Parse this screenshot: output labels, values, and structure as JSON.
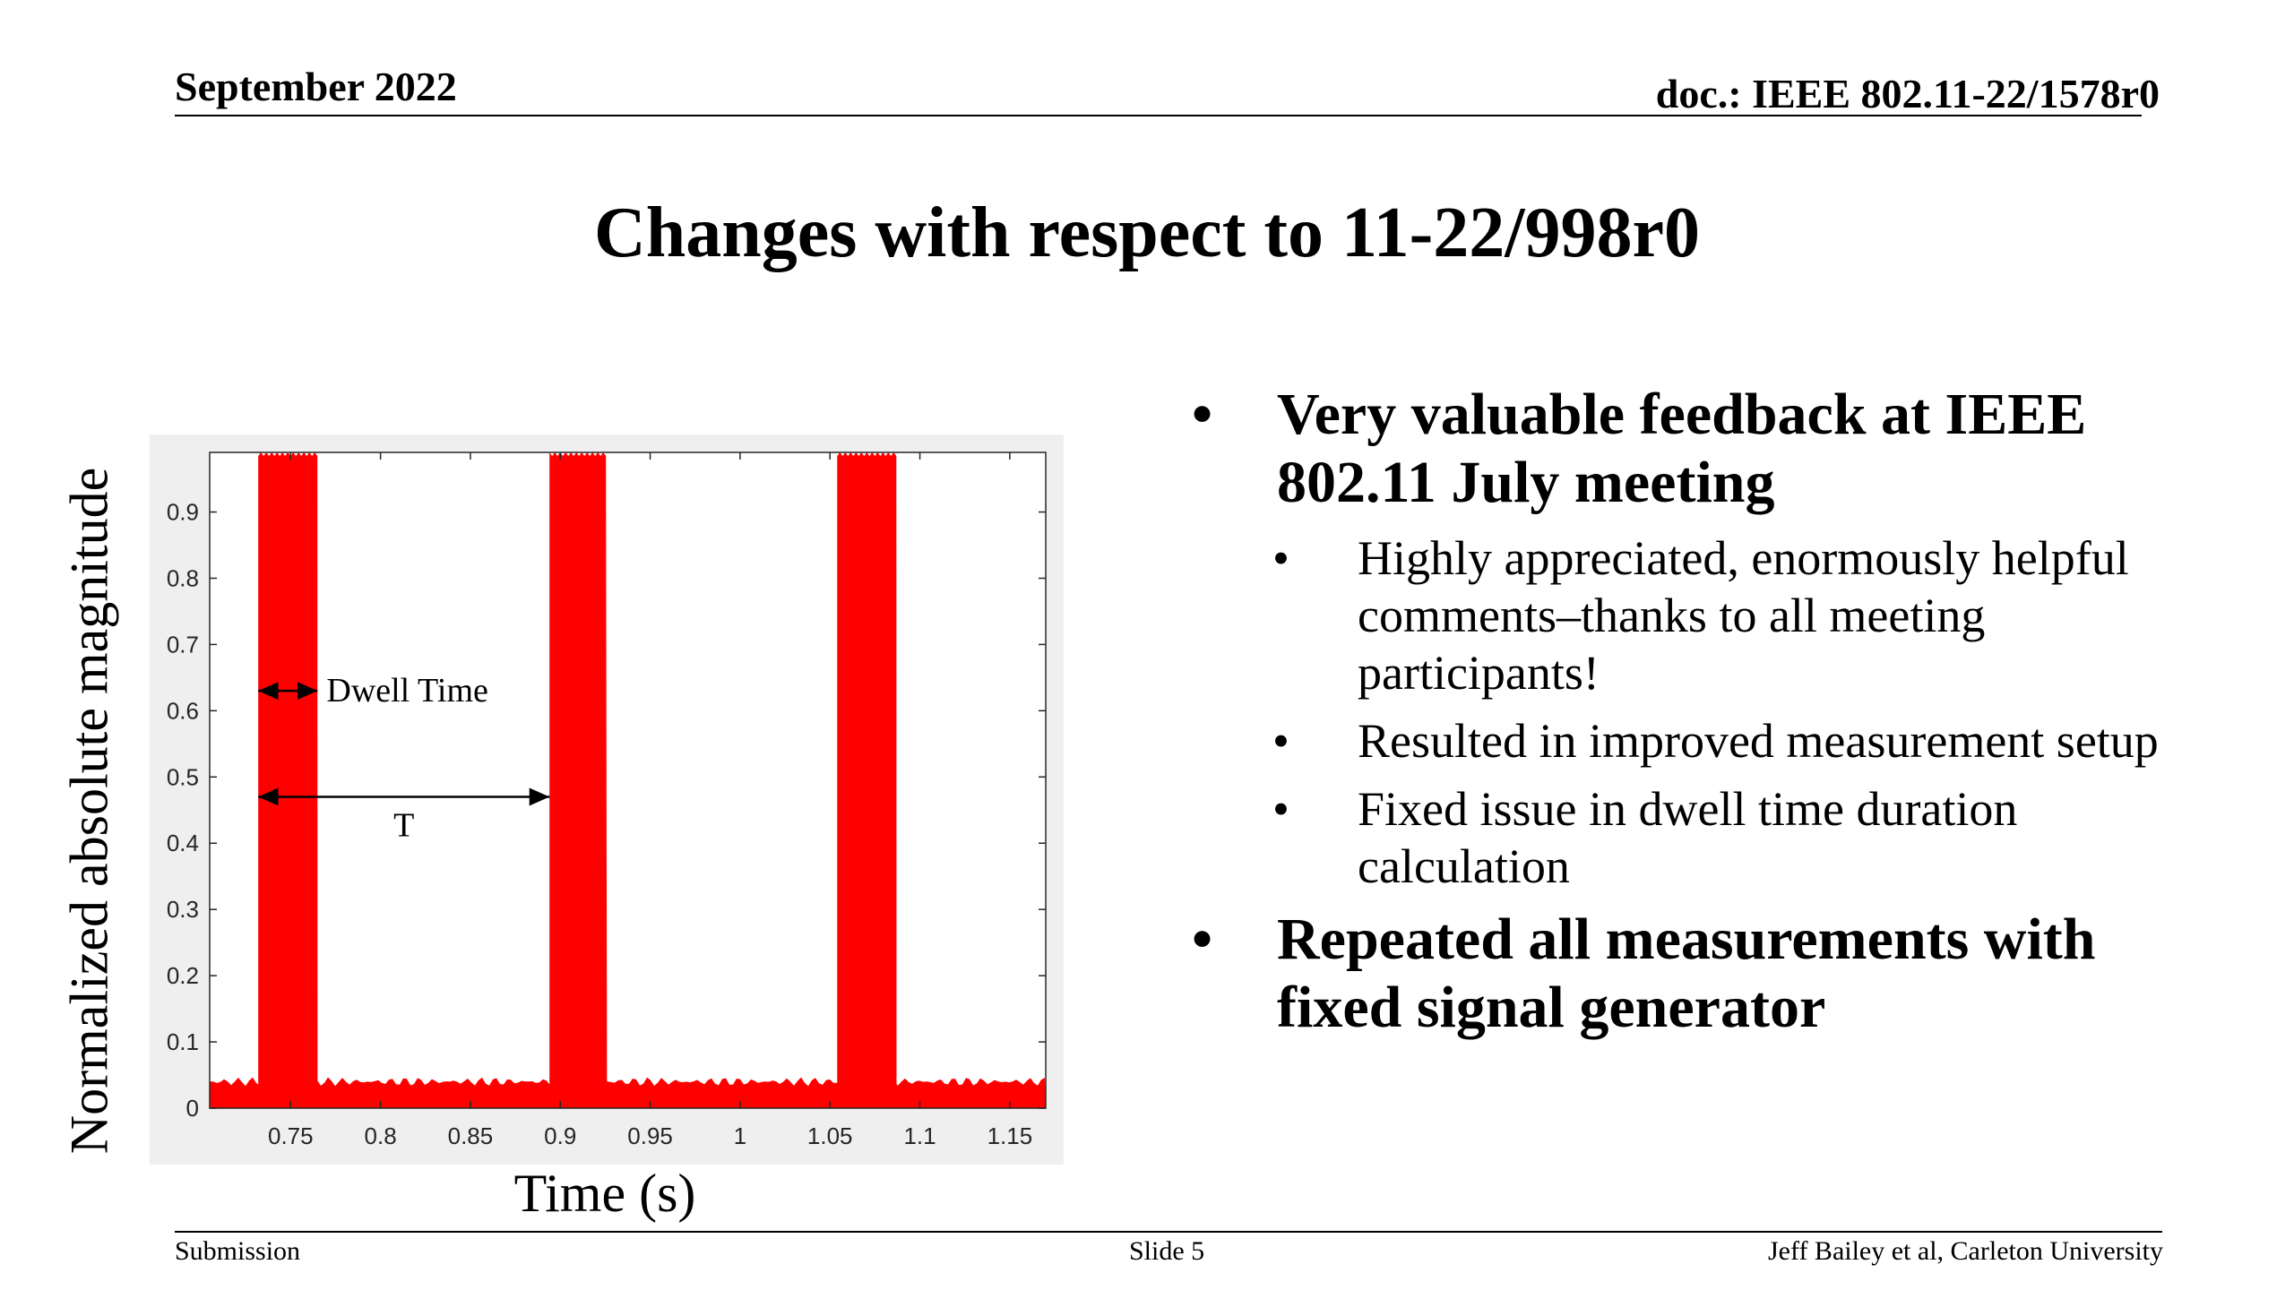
{
  "header": {
    "date": "September 2022",
    "doc": "doc.: IEEE 802.11-22/1578r0"
  },
  "title": "Changes with respect to 11-22/998r0",
  "chart_data": {
    "type": "area",
    "xlabel": "Time (s)",
    "ylabel": "Normalized absolute magnitude",
    "xlim": [
      0.705,
      1.17
    ],
    "ylim": [
      0,
      0.99
    ],
    "xticks": [
      0.75,
      0.8,
      0.85,
      0.9,
      0.95,
      1,
      1.05,
      1.1,
      1.15
    ],
    "yticks": [
      0,
      0.1,
      0.2,
      0.3,
      0.4,
      0.5,
      0.6,
      0.7,
      0.8,
      0.9
    ],
    "xtick_labels": [
      "0.75",
      "0.8",
      "0.85",
      "0.9",
      "0.95",
      "1",
      "1.05",
      "1.1",
      "1.15"
    ],
    "ytick_labels": [
      "0",
      "0.1",
      "0.2",
      "0.3",
      "0.4",
      "0.5",
      "0.6",
      "0.7",
      "0.8",
      "0.9"
    ],
    "series_color": "#ff0000",
    "noise_floor": 0.04,
    "bursts": [
      {
        "start": 0.732,
        "end": 0.765,
        "peak": 0.99
      },
      {
        "start": 0.894,
        "end": 0.926,
        "peak": 0.99
      },
      {
        "start": 1.054,
        "end": 1.087,
        "peak": 0.99
      }
    ],
    "annotations": [
      {
        "label": "Dwell Time",
        "x_start": 0.732,
        "x_end": 0.765,
        "y": 0.63
      },
      {
        "label": "T",
        "x_start": 0.732,
        "x_end": 0.894,
        "y": 0.47
      }
    ]
  },
  "bullets": [
    {
      "text": "Very valuable feedback at IEEE 802.11 July meeting",
      "sub": [
        "Highly appreciated, enormously helpful comments–thanks to all meeting participants!",
        "Resulted in improved measurement setup",
        "Fixed issue in dwell time duration calculation"
      ]
    },
    {
      "text": "Repeated all measurements with fixed signal generator",
      "sub": []
    }
  ],
  "bullet_glyph": "•",
  "footer": {
    "left": "Submission",
    "center": "Slide 5",
    "right": "Jeff Bailey et al, Carleton University"
  }
}
